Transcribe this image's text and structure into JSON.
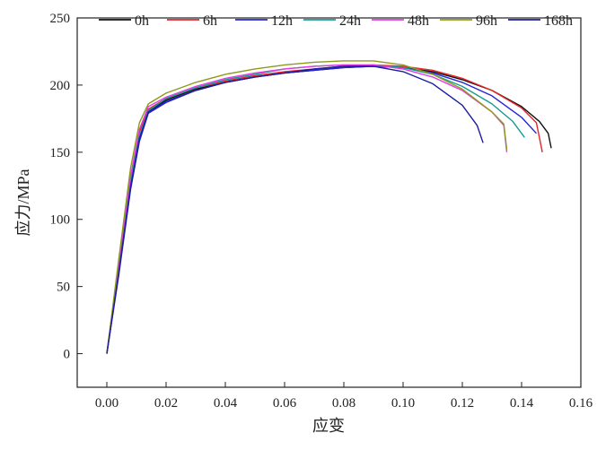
{
  "chart_data": {
    "type": "line",
    "title": "",
    "xlabel": "应变",
    "ylabel": "应力/MPa",
    "xlim": [
      -0.01,
      0.16
    ],
    "ylim": [
      -25,
      250
    ],
    "xticks": [
      "0.00",
      "0.02",
      "0.04",
      "0.06",
      "0.08",
      "0.10",
      "0.12",
      "0.14",
      "0.16"
    ],
    "yticks": [
      "0",
      "50",
      "100",
      "150",
      "200",
      "250"
    ],
    "grid": false,
    "legend_position": "top",
    "series": [
      {
        "name": "0h",
        "color": "#111111",
        "x": [
          0.0,
          0.004,
          0.008,
          0.011,
          0.014,
          0.02,
          0.03,
          0.04,
          0.05,
          0.06,
          0.07,
          0.08,
          0.09,
          0.1,
          0.11,
          0.12,
          0.13,
          0.14,
          0.146,
          0.149,
          0.15
        ],
        "y": [
          0,
          60,
          125,
          160,
          180,
          189,
          197,
          202,
          206,
          209,
          211,
          213,
          214,
          213,
          210,
          204,
          196,
          184,
          173,
          164,
          153
        ]
      },
      {
        "name": "6h",
        "color": "#e4252b",
        "x": [
          0.0,
          0.004,
          0.008,
          0.011,
          0.014,
          0.02,
          0.03,
          0.04,
          0.05,
          0.06,
          0.07,
          0.08,
          0.09,
          0.1,
          0.11,
          0.12,
          0.13,
          0.14,
          0.145,
          0.147
        ],
        "y": [
          0,
          65,
          130,
          165,
          182,
          190,
          198,
          203,
          207,
          210,
          212,
          214,
          215,
          214,
          211,
          205,
          196,
          183,
          172,
          150
        ]
      },
      {
        "name": "12h",
        "color": "#2424d8",
        "x": [
          0.0,
          0.004,
          0.008,
          0.011,
          0.014,
          0.02,
          0.03,
          0.04,
          0.05,
          0.06,
          0.07,
          0.08,
          0.09,
          0.1,
          0.11,
          0.12,
          0.13,
          0.14,
          0.145
        ],
        "y": [
          0,
          58,
          122,
          158,
          179,
          187,
          196,
          202,
          206,
          209,
          211,
          213,
          214,
          213,
          209,
          202,
          192,
          176,
          164
        ]
      },
      {
        "name": "24h",
        "color": "#1a9a96",
        "x": [
          0.0,
          0.004,
          0.008,
          0.011,
          0.014,
          0.02,
          0.03,
          0.04,
          0.05,
          0.06,
          0.07,
          0.08,
          0.09,
          0.1,
          0.11,
          0.12,
          0.13,
          0.137,
          0.141
        ],
        "y": [
          0,
          62,
          127,
          162,
          181,
          190,
          198,
          204,
          208,
          212,
          214,
          215,
          215,
          213,
          208,
          199,
          186,
          173,
          161
        ]
      },
      {
        "name": "48h",
        "color": "#e23be6",
        "x": [
          0.0,
          0.004,
          0.008,
          0.011,
          0.014,
          0.02,
          0.03,
          0.04,
          0.05,
          0.06,
          0.07,
          0.08,
          0.09,
          0.1,
          0.11,
          0.12,
          0.13,
          0.134,
          0.135
        ],
        "y": [
          0,
          66,
          132,
          167,
          184,
          191,
          199,
          205,
          209,
          212,
          214,
          215,
          215,
          212,
          206,
          196,
          180,
          170,
          150
        ]
      },
      {
        "name": "96h",
        "color": "#8d9a1a",
        "x": [
          0.0,
          0.004,
          0.008,
          0.011,
          0.014,
          0.02,
          0.03,
          0.04,
          0.05,
          0.06,
          0.07,
          0.08,
          0.09,
          0.1,
          0.11,
          0.12,
          0.13,
          0.134,
          0.135
        ],
        "y": [
          0,
          70,
          138,
          172,
          186,
          194,
          202,
          208,
          212,
          215,
          217,
          218,
          218,
          215,
          208,
          197,
          180,
          171,
          152
        ]
      },
      {
        "name": "168h",
        "color": "#1c1c9c",
        "x": [
          0.0,
          0.004,
          0.008,
          0.011,
          0.014,
          0.02,
          0.03,
          0.04,
          0.05,
          0.06,
          0.07,
          0.08,
          0.09,
          0.1,
          0.11,
          0.12,
          0.125,
          0.127
        ],
        "y": [
          0,
          60,
          124,
          160,
          180,
          188,
          196,
          202,
          206,
          209,
          212,
          214,
          214,
          210,
          201,
          185,
          170,
          157
        ]
      }
    ]
  }
}
